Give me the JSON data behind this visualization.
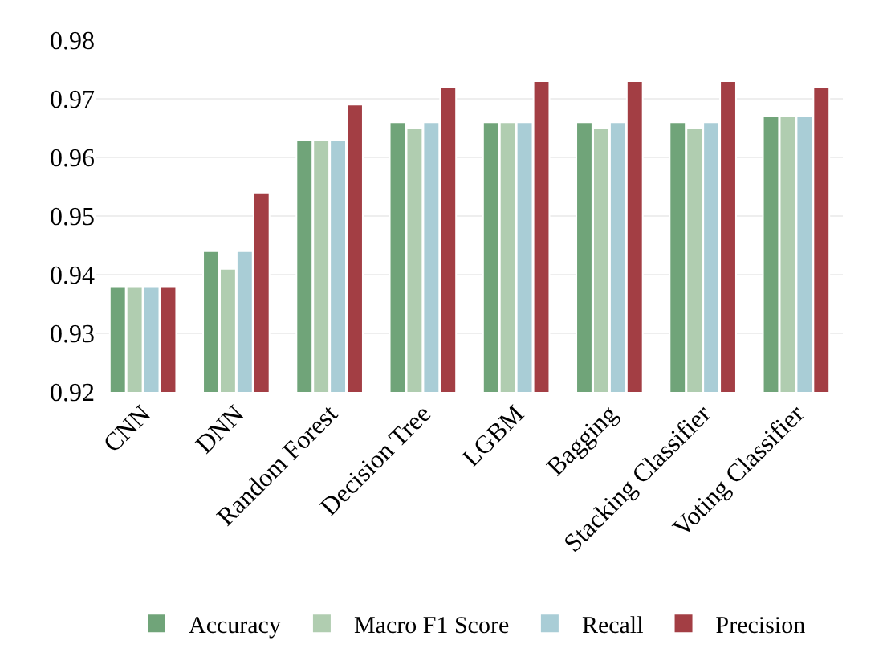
{
  "chart_data": {
    "type": "bar",
    "categories": [
      "CNN",
      "DNN",
      "Random Forest",
      "Decision Tree",
      "LGBM",
      "Bagging",
      "Stacking Classifier",
      "Voting Classifier"
    ],
    "series": [
      {
        "name": "Accuracy",
        "color": "#70a479",
        "values": [
          0.938,
          0.944,
          0.963,
          0.966,
          0.966,
          0.966,
          0.966,
          0.967
        ]
      },
      {
        "name": "Macro F1 Score",
        "color": "#b0cdb0",
        "values": [
          0.938,
          0.941,
          0.963,
          0.965,
          0.966,
          0.965,
          0.965,
          0.967
        ]
      },
      {
        "name": "Recall",
        "color": "#a9cdd6",
        "values": [
          0.938,
          0.944,
          0.963,
          0.966,
          0.966,
          0.966,
          0.966,
          0.967
        ]
      },
      {
        "name": "Precision",
        "color": "#a33e44",
        "values": [
          0.938,
          0.954,
          0.969,
          0.972,
          0.973,
          0.973,
          0.973,
          0.972
        ]
      }
    ],
    "ylim": [
      0.92,
      0.98
    ],
    "yticks": [
      0.92,
      0.93,
      0.94,
      0.95,
      0.96,
      0.97,
      0.98
    ],
    "grid": "y",
    "legend": "bottom"
  }
}
